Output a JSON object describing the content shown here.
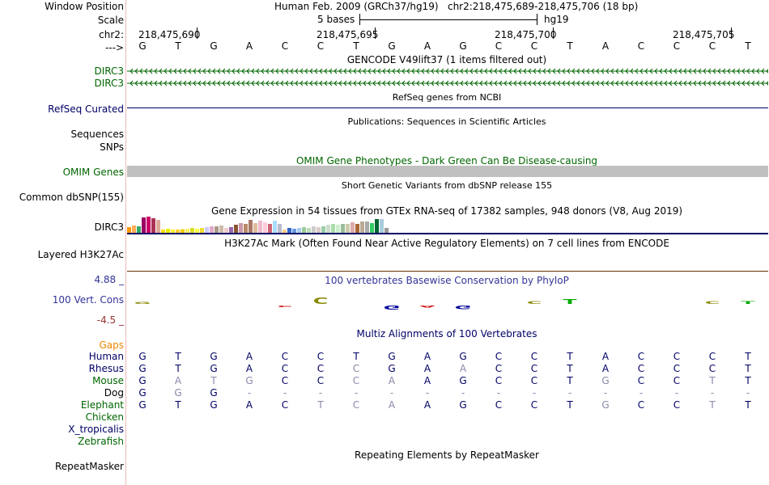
{
  "header": {
    "window_position_label": "Window Position",
    "assembly": "Human Feb. 2009 (GRCh37/hg19)",
    "position": "chr2:218,475,689-218,475,706 (18 bp)",
    "scale_label": "Scale",
    "scale_text": "5 bases",
    "scale_db": "hg19",
    "chrom_label": "chr2:",
    "ruler_coords": [
      "218,475,690",
      "218,475,695",
      "218,475,700",
      "218,475,705"
    ],
    "strand_label": "--->"
  },
  "sequence": [
    "G",
    "T",
    "G",
    "A",
    "C",
    "C",
    "T",
    "G",
    "A",
    "G",
    "C",
    "C",
    "T",
    "A",
    "C",
    "C",
    "C",
    "T"
  ],
  "tracks": {
    "gencode": {
      "title": "GENCODE V49lift37 (1 items filtered out)",
      "items": [
        "DIRC3",
        "DIRC3"
      ],
      "color": "#006600"
    },
    "refseq": {
      "title": "RefSeq genes from NCBI",
      "label": "RefSeq Curated",
      "color": "#000066"
    },
    "publications": {
      "title": "Publications: Sequences in Scientific Articles",
      "labels": [
        "Sequences",
        "SNPs"
      ]
    },
    "omim": {
      "title": "OMIM Gene Phenotypes - Dark Green Can Be Disease-causing",
      "label": "OMIM Genes",
      "color": "#006600"
    },
    "dbsnp": {
      "title": "Short Genetic Variants from dbSNP release 155",
      "label": "Common dbSNP(155)"
    },
    "gtex": {
      "title": "Gene Expression in 54 tissues from GTEx RNA-seq of 17382 samples, 948 donors (V8, Aug 2019)",
      "label": "DIRC3",
      "bars": [
        0.35,
        0.45,
        0.4,
        0.95,
        1.0,
        0.9,
        0.8,
        0.2,
        0.25,
        0.2,
        0.2,
        0.22,
        0.25,
        0.3,
        0.25,
        0.3,
        0.35,
        0.4,
        0.4,
        0.45,
        0.3,
        0.35,
        0.5,
        0.6,
        0.55,
        0.8,
        0.6,
        0.75,
        0.65,
        0.55,
        0.75,
        0.55,
        0.2,
        0.3,
        0.25,
        0.3,
        0.35,
        0.3,
        0.4,
        0.35,
        0.4,
        0.5,
        0.55,
        0.5,
        0.55,
        0.55,
        0.65,
        0.55,
        0.7,
        0.7,
        0.6,
        0.85,
        0.85,
        0.3
      ],
      "colors": [
        "#ff9900",
        "#ffaa55",
        "#33aa66",
        "#990066",
        "#cc0066",
        "#aa3355",
        "#ddaa99",
        "#ffdd00",
        "#eeee00",
        "#ffee33",
        "#ffcc33",
        "#eecc00",
        "#ffee66",
        "#dddd22",
        "#ffff44",
        "#eedd33",
        "#ccccff",
        "#ddaacc",
        "#aa9988",
        "#ccbbaa",
        "#eecccc",
        "#9966aa",
        "#885533",
        "#cc99aa",
        "#bb8866",
        "#aa7766",
        "#ddbb99",
        "#eebbcc",
        "#ffccdd",
        "#cc6677",
        "#aaddff",
        "#bbbbcc",
        "#ffcc88",
        "#3366cc",
        "#6699dd",
        "#aaccee",
        "#99cc99",
        "#bbddbb",
        "#cccccc",
        "#ddcccc",
        "#99ccaa",
        "#ccddcc",
        "#aaddaa",
        "#cceecc",
        "#99bb99",
        "#ccccaa",
        "#ddaaaa",
        "#aa6633",
        "#bbaa99",
        "#aaaaaa",
        "#33cc66",
        "#006633",
        "#aaccdd",
        "#999999"
      ]
    },
    "h3k27ac": {
      "title": "H3K27Ac Mark (Often Found Near Active Regulatory Elements) on 7 cell lines from ENCODE",
      "label": "Layered H3K27Ac"
    },
    "conservation": {
      "title": "100 vertebrates Basewise Conservation by PhyloP",
      "label": "100 Vert. Cons",
      "ymax": "4.88 _",
      "ymin": "-4.5 _",
      "values": [
        0.4,
        0,
        0,
        0,
        -0.3,
        1.3,
        0,
        -0.8,
        -0.4,
        -0.7,
        0,
        0.5,
        0.9,
        0,
        0,
        0,
        0.5,
        0.5
      ],
      "colors": {
        "pos": "#888800",
        "neg": "#cc0000",
        "pos_strong": "#00aa00",
        "neg_blue": "#000099"
      }
    },
    "multiz": {
      "title": "Multiz Alignments of 100 Vertebrates",
      "gaps_label": "Gaps",
      "species": [
        {
          "name": "Human",
          "color": "#000066",
          "bases": [
            "G",
            "T",
            "G",
            "A",
            "C",
            "C",
            "T",
            "G",
            "A",
            "G",
            "C",
            "C",
            "T",
            "A",
            "C",
            "C",
            "C",
            "T"
          ],
          "dim": []
        },
        {
          "name": "Rhesus",
          "color": "#000066",
          "bases": [
            "G",
            "T",
            "G",
            "A",
            "C",
            "C",
            "C",
            "G",
            "A",
            "A",
            "C",
            "C",
            "T",
            "A",
            "C",
            "C",
            "C",
            "T"
          ],
          "dim": [
            6,
            9
          ]
        },
        {
          "name": "Mouse",
          "color": "#006600",
          "bases": [
            "G",
            "A",
            "T",
            "G",
            "C",
            "C",
            "C",
            "A",
            "A",
            "G",
            "C",
            "C",
            "T",
            "G",
            "C",
            "C",
            "T",
            "T"
          ],
          "dim": [
            1,
            2,
            3,
            6,
            7,
            13,
            16
          ]
        },
        {
          "name": "Dog",
          "color": "#000000",
          "bases": [
            "G",
            "G",
            "G",
            "-",
            "-",
            "-",
            "-",
            "-",
            "-",
            "-",
            "-",
            "-",
            "-",
            "-",
            "-",
            "-",
            "-",
            "-"
          ],
          "dim": [
            1,
            3,
            4,
            5,
            6,
            7,
            8,
            9,
            10,
            11,
            12,
            13,
            14,
            15,
            16,
            17
          ]
        },
        {
          "name": "Elephant",
          "color": "#006600",
          "bases": [
            "G",
            "T",
            "G",
            "A",
            "C",
            "T",
            "C",
            "A",
            "A",
            "G",
            "C",
            "C",
            "T",
            "G",
            "C",
            "C",
            "T",
            "T"
          ],
          "dim": [
            5,
            6,
            7,
            13,
            16
          ]
        },
        {
          "name": "Chicken",
          "color": "#006600",
          "bases": [],
          "dim": []
        },
        {
          "name": "X_tropicalis",
          "color": "#000066",
          "bases": [],
          "dim": []
        },
        {
          "name": "Zebrafish",
          "color": "#006600",
          "bases": [],
          "dim": []
        }
      ]
    },
    "repeatmasker": {
      "title": "Repeating Elements by RepeatMasker",
      "label": "RepeatMasker"
    }
  }
}
